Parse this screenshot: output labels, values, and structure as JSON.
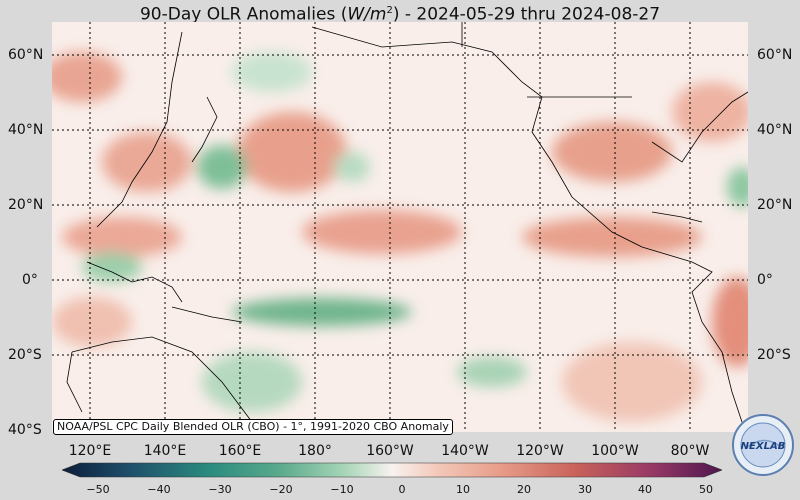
{
  "title": {
    "prefix": "90-Day OLR Anomalies (",
    "var": "W/m",
    "exp": "2",
    "suffix": ") - 2024-05-29 thru 2024-08-27"
  },
  "lat_labels": [
    "60°N",
    "40°N",
    "20°N",
    "0°",
    "20°S",
    "40°S"
  ],
  "lon_labels": [
    "120°E",
    "140°E",
    "160°E",
    "180°",
    "160°W",
    "140°W",
    "120°W",
    "100°W",
    "80°W"
  ],
  "credit": "NOAA/PSL CPC Daily Blended OLR (CBO) - 1°, 1991-2020 CBO Anomaly",
  "colorbar": {
    "ticks": [
      "−50",
      "−40",
      "−30",
      "−20",
      "−10",
      "0",
      "10",
      "20",
      "30",
      "40",
      "50"
    ],
    "range": [
      -50,
      50
    ],
    "colors": [
      "#0b1e3a",
      "#1f4e6a",
      "#2a7d7a",
      "#4aa38a",
      "#7fc19e",
      "#bfe0c8",
      "#f5f0ee",
      "#f4cfc0",
      "#e99a86",
      "#d06a5a",
      "#b04a5a",
      "#8b2e66",
      "#5a1a55"
    ]
  },
  "logo": {
    "text": "NEXLAB",
    "icon": "nexlab-logo"
  }
}
